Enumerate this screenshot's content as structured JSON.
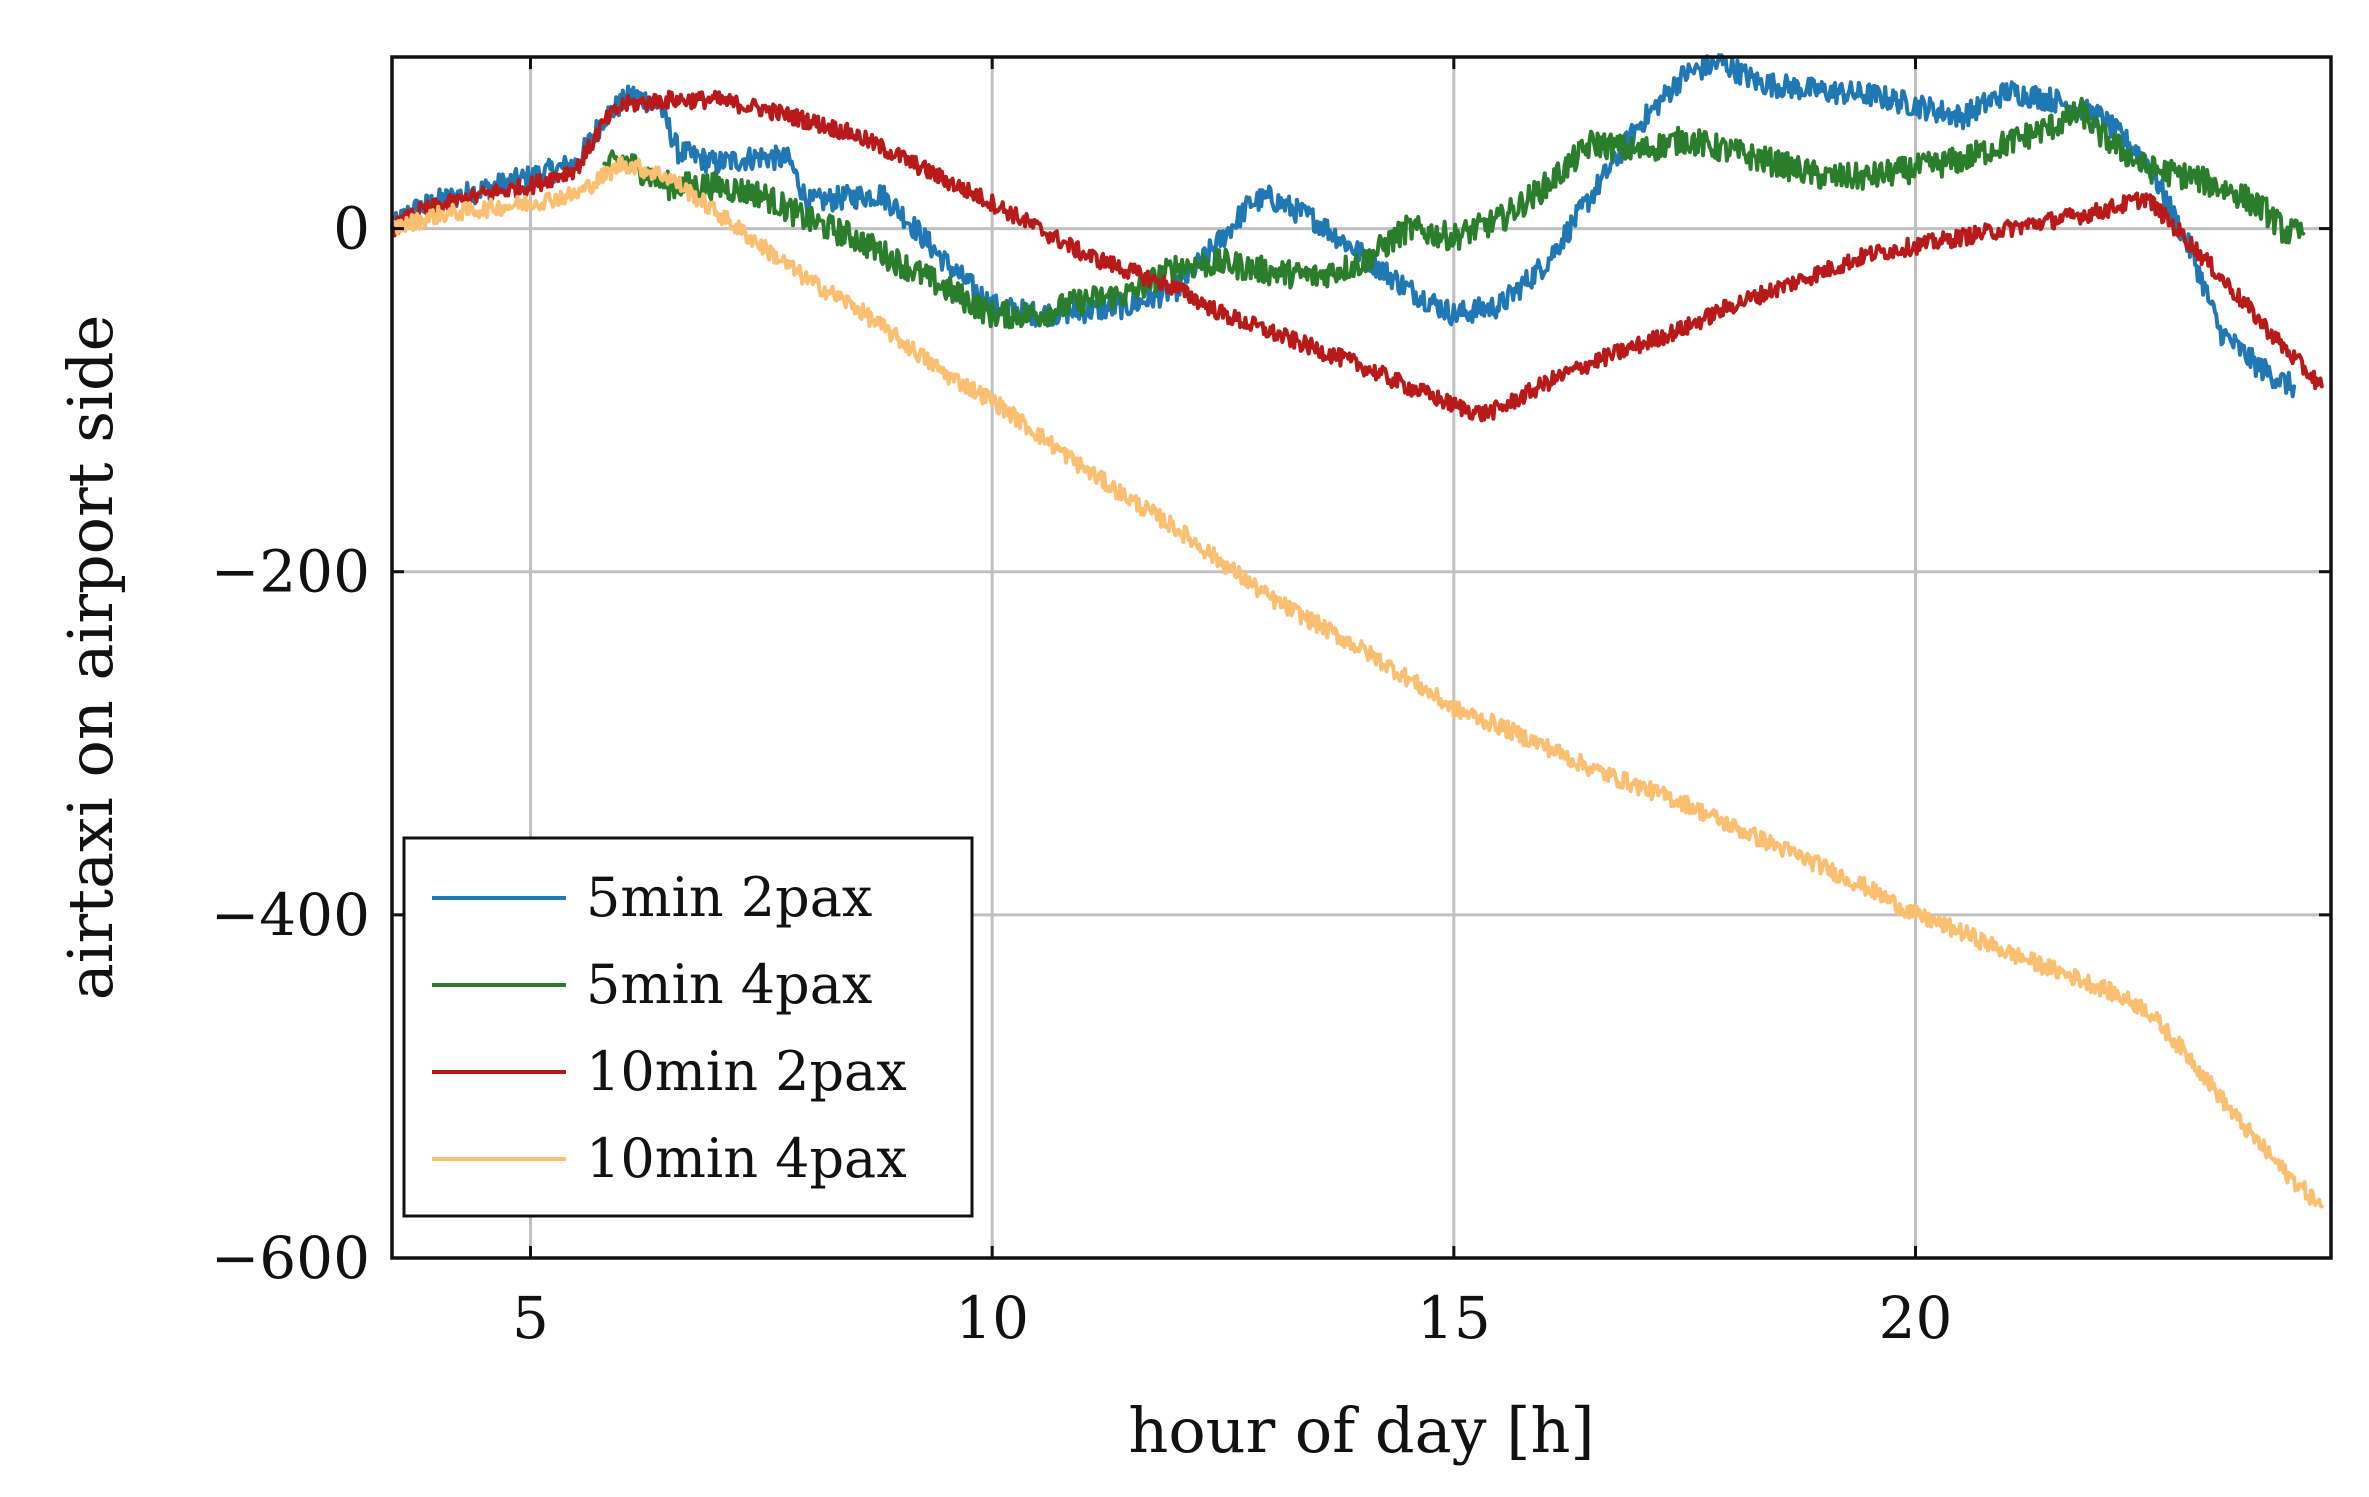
{
  "chart_data": {
    "type": "line",
    "title": "",
    "xlabel": "hour of day [h]",
    "ylabel": "airtaxi on airport side",
    "xlim": [
      3.5,
      24.5
    ],
    "ylim": [
      -600,
      100
    ],
    "xticks": [
      5,
      10,
      15,
      20
    ],
    "xtick_labels": [
      "5",
      "10",
      "15",
      "20"
    ],
    "yticks": [
      0,
      -200,
      -400,
      -600
    ],
    "ytick_labels": [
      "0",
      "−200",
      "−400",
      "−600"
    ],
    "grid": true,
    "legend_position": "bottom-left",
    "series": [
      {
        "name": "5min 2pax",
        "color": "#1f77b4",
        "noise": 7,
        "points": [
          [
            3.5,
            0
          ],
          [
            3.7,
            10
          ],
          [
            4.0,
            16
          ],
          [
            5.0,
            30
          ],
          [
            5.5,
            38
          ],
          [
            5.8,
            65
          ],
          [
            6.1,
            78
          ],
          [
            6.4,
            72
          ],
          [
            6.6,
            45
          ],
          [
            7.0,
            38
          ],
          [
            7.5,
            42
          ],
          [
            7.8,
            40
          ],
          [
            8.0,
            15
          ],
          [
            8.4,
            18
          ],
          [
            8.8,
            20
          ],
          [
            9.0,
            10
          ],
          [
            9.5,
            -20
          ],
          [
            10.0,
            -45
          ],
          [
            10.5,
            -50
          ],
          [
            11.0,
            -48
          ],
          [
            11.5,
            -45
          ],
          [
            12.0,
            -35
          ],
          [
            12.5,
            -5
          ],
          [
            12.8,
            15
          ],
          [
            13.0,
            18
          ],
          [
            13.5,
            5
          ],
          [
            14.0,
            -15
          ],
          [
            14.5,
            -35
          ],
          [
            15.0,
            -50
          ],
          [
            15.5,
            -45
          ],
          [
            16.0,
            -20
          ],
          [
            16.5,
            20
          ],
          [
            17.0,
            60
          ],
          [
            17.5,
            90
          ],
          [
            17.9,
            97
          ],
          [
            18.3,
            85
          ],
          [
            19.0,
            80
          ],
          [
            19.5,
            78
          ],
          [
            20.0,
            72
          ],
          [
            20.5,
            65
          ],
          [
            21.0,
            80
          ],
          [
            21.5,
            75
          ],
          [
            22.0,
            65
          ],
          [
            22.5,
            40
          ],
          [
            23.0,
            -15
          ],
          [
            23.3,
            -60
          ],
          [
            23.7,
            -80
          ],
          [
            24.0,
            -90
          ],
          [
            24.1,
            -92
          ]
        ]
      },
      {
        "name": "5min 4pax",
        "color": "#2a7d2a",
        "noise": 8,
        "points": [
          [
            5.8,
            35
          ],
          [
            6.0,
            40
          ],
          [
            6.5,
            25
          ],
          [
            7.0,
            25
          ],
          [
            7.5,
            20
          ],
          [
            8.0,
            5
          ],
          [
            8.5,
            -5
          ],
          [
            9.0,
            -20
          ],
          [
            9.5,
            -35
          ],
          [
            10.0,
            -50
          ],
          [
            10.5,
            -50
          ],
          [
            11.0,
            -42
          ],
          [
            11.5,
            -38
          ],
          [
            12.0,
            -22
          ],
          [
            12.5,
            -20
          ],
          [
            13.0,
            -25
          ],
          [
            13.5,
            -28
          ],
          [
            14.0,
            -20
          ],
          [
            14.5,
            0
          ],
          [
            15.0,
            -5
          ],
          [
            15.5,
            5
          ],
          [
            16.0,
            25
          ],
          [
            16.5,
            50
          ],
          [
            17.0,
            45
          ],
          [
            17.5,
            52
          ],
          [
            18.0,
            45
          ],
          [
            18.5,
            38
          ],
          [
            19.0,
            30
          ],
          [
            19.5,
            30
          ],
          [
            20.0,
            35
          ],
          [
            20.5,
            40
          ],
          [
            21.0,
            50
          ],
          [
            21.5,
            60
          ],
          [
            21.8,
            68
          ],
          [
            22.0,
            55
          ],
          [
            22.5,
            35
          ],
          [
            23.0,
            30
          ],
          [
            23.5,
            20
          ],
          [
            23.8,
            10
          ],
          [
            24.0,
            -2
          ],
          [
            24.2,
            -3
          ]
        ]
      },
      {
        "name": "10min 2pax",
        "color": "#b81a1a",
        "noise": 5,
        "points": [
          [
            3.5,
            0
          ],
          [
            3.8,
            10
          ],
          [
            4.5,
            20
          ],
          [
            5.0,
            25
          ],
          [
            5.5,
            35
          ],
          [
            5.8,
            62
          ],
          [
            6.0,
            72
          ],
          [
            6.5,
            75
          ],
          [
            7.0,
            75
          ],
          [
            7.5,
            70
          ],
          [
            8.0,
            63
          ],
          [
            8.5,
            55
          ],
          [
            9.0,
            42
          ],
          [
            9.5,
            28
          ],
          [
            10.0,
            15
          ],
          [
            10.5,
            0
          ],
          [
            11.0,
            -15
          ],
          [
            11.5,
            -25
          ],
          [
            12.0,
            -35
          ],
          [
            12.5,
            -50
          ],
          [
            13.0,
            -60
          ],
          [
            13.5,
            -70
          ],
          [
            14.0,
            -80
          ],
          [
            14.5,
            -92
          ],
          [
            15.0,
            -103
          ],
          [
            15.3,
            -108
          ],
          [
            15.5,
            -105
          ],
          [
            16.0,
            -90
          ],
          [
            16.5,
            -78
          ],
          [
            17.0,
            -68
          ],
          [
            17.5,
            -58
          ],
          [
            18.0,
            -45
          ],
          [
            18.5,
            -35
          ],
          [
            19.0,
            -25
          ],
          [
            19.5,
            -15
          ],
          [
            20.0,
            -10
          ],
          [
            20.5,
            -5
          ],
          [
            21.0,
            0
          ],
          [
            21.5,
            5
          ],
          [
            22.0,
            10
          ],
          [
            22.5,
            18
          ],
          [
            23.0,
            -10
          ],
          [
            23.5,
            -40
          ],
          [
            24.0,
            -70
          ],
          [
            24.4,
            -92
          ]
        ]
      },
      {
        "name": "10min 4pax",
        "color": "#fbbf72",
        "noise": 5,
        "points": [
          [
            3.5,
            0
          ],
          [
            4.0,
            8
          ],
          [
            5.0,
            15
          ],
          [
            5.5,
            20
          ],
          [
            6.0,
            38
          ],
          [
            6.2,
            35
          ],
          [
            6.5,
            30
          ],
          [
            7.0,
            10
          ],
          [
            7.5,
            -10
          ],
          [
            8.0,
            -30
          ],
          [
            8.5,
            -45
          ],
          [
            9.0,
            -65
          ],
          [
            9.5,
            -85
          ],
          [
            10.0,
            -100
          ],
          [
            10.5,
            -120
          ],
          [
            11.0,
            -140
          ],
          [
            11.5,
            -158
          ],
          [
            12.0,
            -175
          ],
          [
            12.5,
            -195
          ],
          [
            13.0,
            -215
          ],
          [
            13.5,
            -230
          ],
          [
            14.0,
            -245
          ],
          [
            14.5,
            -262
          ],
          [
            15.0,
            -280
          ],
          [
            15.5,
            -290
          ],
          [
            16.0,
            -302
          ],
          [
            16.5,
            -315
          ],
          [
            17.0,
            -325
          ],
          [
            17.5,
            -335
          ],
          [
            18.0,
            -348
          ],
          [
            18.5,
            -360
          ],
          [
            19.0,
            -372
          ],
          [
            19.5,
            -385
          ],
          [
            20.0,
            -400
          ],
          [
            20.5,
            -410
          ],
          [
            21.0,
            -422
          ],
          [
            21.5,
            -432
          ],
          [
            22.0,
            -442
          ],
          [
            22.5,
            -455
          ],
          [
            23.0,
            -485
          ],
          [
            23.5,
            -520
          ],
          [
            24.0,
            -550
          ],
          [
            24.4,
            -570
          ]
        ]
      }
    ]
  }
}
